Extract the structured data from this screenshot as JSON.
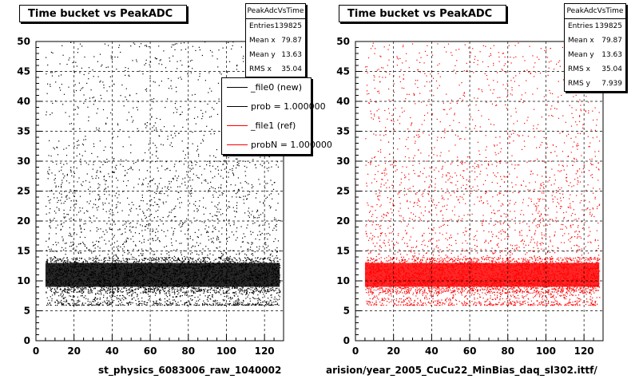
{
  "panels": [
    {
      "title": "Time bucket vs PeakADC",
      "file_label": "st_physics_6083006_raw_1040002",
      "marker_color": "#000000",
      "stats": {
        "name": "PeakAdcVsTime",
        "rows": [
          {
            "label": "Entries",
            "value": "139825"
          },
          {
            "label": "Mean x",
            "value": "79.87"
          },
          {
            "label": "Mean y",
            "value": "13.63"
          },
          {
            "label": "RMS x",
            "value": "35.04"
          }
        ]
      }
    },
    {
      "title": "Time bucket vs PeakADC",
      "file_label": "arision/year_2005_CuCu22_MinBias_daq_sl302.ittf/",
      "marker_color": "#ff0000",
      "stats": {
        "name": "PeakAdcVsTime",
        "rows": [
          {
            "label": "Entries",
            "value": "139825"
          },
          {
            "label": "Mean x",
            "value": "79.87"
          },
          {
            "label": "Mean y",
            "value": "13.63"
          },
          {
            "label": "RMS x",
            "value": "35.04"
          },
          {
            "label": "RMS y",
            "value": "7.939"
          }
        ]
      }
    }
  ],
  "legend": {
    "items": [
      {
        "label": "_file0 (new)",
        "color": "#000000"
      },
      {
        "label": "prob = 1.000000",
        "color": "#000000"
      },
      {
        "label": "_file1 (ref)",
        "color": "#ff0000"
      },
      {
        "label": "probN = 1.000000",
        "color": "#ff0000"
      }
    ]
  },
  "chart_data": [
    {
      "type": "scatter",
      "title": "Time bucket vs PeakADC",
      "xlabel": "",
      "ylabel": "",
      "xlim": [
        0,
        130
      ],
      "ylim": [
        0,
        50
      ],
      "x_ticks": [
        0,
        20,
        40,
        60,
        80,
        100,
        120
      ],
      "y_ticks": [
        0,
        5,
        10,
        15,
        20,
        25,
        30,
        35,
        40,
        45,
        50
      ],
      "grid": true,
      "series": [
        {
          "name": "_file0 (new)",
          "color": "#000000",
          "x_range": [
            5,
            128
          ],
          "y_range": [
            6,
            50
          ],
          "dense_band_y": [
            8,
            14
          ]
        }
      ]
    },
    {
      "type": "scatter",
      "title": "Time bucket vs PeakADC",
      "xlabel": "",
      "ylabel": "",
      "xlim": [
        0,
        130
      ],
      "ylim": [
        0,
        50
      ],
      "x_ticks": [
        0,
        20,
        40,
        60,
        80,
        100,
        120
      ],
      "y_ticks": [
        0,
        5,
        10,
        15,
        20,
        25,
        30,
        35,
        40,
        45,
        50
      ],
      "grid": true,
      "series": [
        {
          "name": "_file1 (ref)",
          "color": "#ff0000",
          "x_range": [
            5,
            128
          ],
          "y_range": [
            6,
            50
          ],
          "dense_band_y": [
            8,
            14
          ]
        }
      ]
    }
  ]
}
